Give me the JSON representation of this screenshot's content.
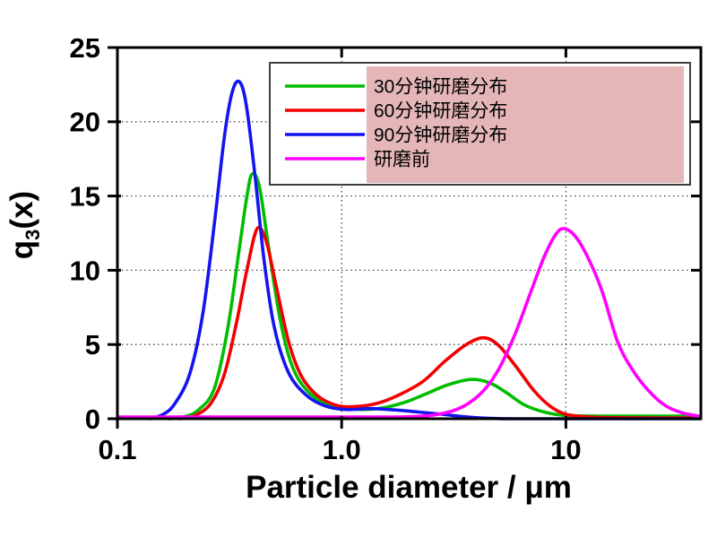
{
  "chart_data": {
    "type": "line",
    "title": "",
    "xlabel": "Particle diameter / μm",
    "ylabel": "q3(x)",
    "ylabel_parts": {
      "pre": "q",
      "sub": "3",
      "post": "(x)"
    },
    "x_scale": "log",
    "xlim": [
      0.1,
      40
    ],
    "ylim": [
      0,
      25
    ],
    "x_ticks": [
      {
        "v": 0.1,
        "label": "0.1"
      },
      {
        "v": 1,
        "label": "1.0"
      },
      {
        "v": 10,
        "label": "10"
      }
    ],
    "y_ticks": [
      {
        "v": 0,
        "label": "0"
      },
      {
        "v": 5,
        "label": "5"
      },
      {
        "v": 10,
        "label": "10"
      },
      {
        "v": 15,
        "label": "15"
      },
      {
        "v": 20,
        "label": "20"
      },
      {
        "v": 25,
        "label": "25"
      }
    ],
    "x_gridlines": [
      1,
      10
    ],
    "y_gridlines": [
      5,
      10,
      15,
      20
    ],
    "grid_style": "dotted",
    "colors": {
      "axis": "#000000",
      "grid": "#444444"
    },
    "legend": {
      "position": "inside-top-center",
      "background": "#ffffff",
      "border_color": "#3f3f3f",
      "highlight_color": "#e5b6b8"
    },
    "series": [
      {
        "name": "30分钟研磨分布",
        "id": "grind-30min",
        "color": "#00bd00",
        "peaks": [
          {
            "x": 0.4,
            "q3": 16.5
          },
          {
            "x": 3.8,
            "q3": 2.7
          }
        ],
        "points": [
          [
            0.17,
            0
          ],
          [
            0.2,
            0.15
          ],
          [
            0.23,
            0.6
          ],
          [
            0.27,
            2.0
          ],
          [
            0.31,
            6.0
          ],
          [
            0.35,
            11.5
          ],
          [
            0.38,
            15.2
          ],
          [
            0.4,
            16.5
          ],
          [
            0.43,
            15.6
          ],
          [
            0.47,
            11.8
          ],
          [
            0.53,
            6.8
          ],
          [
            0.6,
            3.6
          ],
          [
            0.7,
            1.9
          ],
          [
            0.85,
            1.0
          ],
          [
            1.0,
            0.75
          ],
          [
            1.25,
            0.62
          ],
          [
            1.55,
            0.75
          ],
          [
            1.95,
            1.15
          ],
          [
            2.4,
            1.7
          ],
          [
            3.0,
            2.3
          ],
          [
            3.8,
            2.65
          ],
          [
            4.6,
            2.4
          ],
          [
            5.5,
            1.7
          ],
          [
            6.5,
            0.95
          ],
          [
            8.0,
            0.45
          ],
          [
            10,
            0.22
          ],
          [
            14,
            0.18
          ],
          [
            25,
            0.18
          ],
          [
            40,
            0.18
          ]
        ]
      },
      {
        "name": "60分钟研磨分布",
        "id": "grind-60min",
        "color": "#f20000",
        "peaks": [
          {
            "x": 0.42,
            "q3": 12.8
          },
          {
            "x": 4.3,
            "q3": 5.5
          }
        ],
        "points": [
          [
            0.19,
            0
          ],
          [
            0.22,
            0.2
          ],
          [
            0.26,
            1.0
          ],
          [
            0.3,
            3.0
          ],
          [
            0.34,
            6.5
          ],
          [
            0.38,
            10.2
          ],
          [
            0.42,
            12.8
          ],
          [
            0.46,
            12.0
          ],
          [
            0.51,
            9.0
          ],
          [
            0.58,
            5.2
          ],
          [
            0.66,
            2.9
          ],
          [
            0.78,
            1.55
          ],
          [
            0.95,
            0.9
          ],
          [
            1.15,
            0.82
          ],
          [
            1.45,
            1.05
          ],
          [
            1.8,
            1.6
          ],
          [
            2.3,
            2.5
          ],
          [
            2.9,
            3.9
          ],
          [
            3.6,
            5.0
          ],
          [
            4.3,
            5.45
          ],
          [
            5.0,
            4.95
          ],
          [
            6.0,
            3.5
          ],
          [
            7.2,
            1.9
          ],
          [
            8.5,
            0.85
          ],
          [
            10,
            0.3
          ],
          [
            12,
            0.15
          ],
          [
            15,
            0.08
          ],
          [
            25,
            0.06
          ],
          [
            40,
            0.06
          ]
        ]
      },
      {
        "name": "90分钟研磨分布",
        "id": "grind-90min",
        "color": "#1414f0",
        "peaks": [
          {
            "x": 0.35,
            "q3": 22.7
          }
        ],
        "points": [
          [
            0.14,
            0
          ],
          [
            0.16,
            0.3
          ],
          [
            0.18,
            1.0
          ],
          [
            0.21,
            3.0
          ],
          [
            0.24,
            7.0
          ],
          [
            0.27,
            13.0
          ],
          [
            0.3,
            19.0
          ],
          [
            0.325,
            22.0
          ],
          [
            0.35,
            22.7
          ],
          [
            0.375,
            21.2
          ],
          [
            0.41,
            16.5
          ],
          [
            0.45,
            10.8
          ],
          [
            0.5,
            6.2
          ],
          [
            0.58,
            3.1
          ],
          [
            0.7,
            1.55
          ],
          [
            0.85,
            0.85
          ],
          [
            1.05,
            0.62
          ],
          [
            1.35,
            0.68
          ],
          [
            1.7,
            0.6
          ],
          [
            2.2,
            0.45
          ],
          [
            2.8,
            0.3
          ],
          [
            3.5,
            0.14
          ],
          [
            4.2,
            0.05
          ],
          [
            5.0,
            0.01
          ],
          [
            6.0,
            0
          ],
          [
            10,
            0
          ],
          [
            20,
            0
          ],
          [
            40,
            0
          ]
        ]
      },
      {
        "name": "研磨前",
        "id": "before-grinding",
        "color": "#ff00ff",
        "peaks": [
          {
            "x": 9.8,
            "q3": 12.8
          }
        ],
        "points": [
          [
            0.1,
            0.12
          ],
          [
            0.5,
            0.12
          ],
          [
            1.0,
            0.12
          ],
          [
            1.8,
            0.12
          ],
          [
            2.4,
            0.2
          ],
          [
            3.0,
            0.45
          ],
          [
            3.6,
            0.95
          ],
          [
            4.3,
            1.9
          ],
          [
            5.0,
            3.3
          ],
          [
            5.9,
            5.6
          ],
          [
            7.0,
            8.6
          ],
          [
            8.0,
            10.9
          ],
          [
            9.0,
            12.4
          ],
          [
            9.8,
            12.8
          ],
          [
            11,
            12.3
          ],
          [
            12.5,
            10.9
          ],
          [
            14.5,
            8.6
          ],
          [
            17,
            5.2
          ],
          [
            20,
            3.2
          ],
          [
            24,
            1.7
          ],
          [
            28,
            0.85
          ],
          [
            33,
            0.4
          ],
          [
            40,
            0.15
          ]
        ]
      }
    ]
  }
}
